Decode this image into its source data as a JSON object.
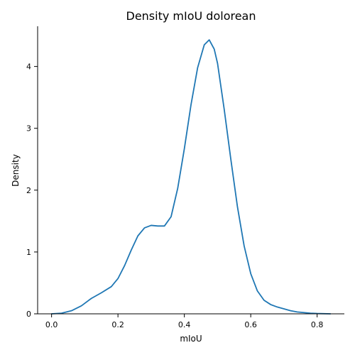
{
  "chart_data": {
    "type": "line",
    "title": "Density mIoU dolorean",
    "xlabel": "mIoU",
    "ylabel": "Density",
    "xlim": [
      -0.042,
      0.882
    ],
    "ylim": [
      0,
      4.65
    ],
    "xticks": [
      0.0,
      0.2,
      0.4,
      0.6,
      0.8
    ],
    "xtick_labels": [
      "0.0",
      "0.2",
      "0.4",
      "0.6",
      "0.8"
    ],
    "yticks": [
      0,
      1,
      2,
      3,
      4
    ],
    "ytick_labels": [
      "0",
      "1",
      "2",
      "3",
      "4"
    ],
    "grid": false,
    "color": "#1f77b4",
    "series": [
      {
        "x": [
          0.0,
          0.03,
          0.06,
          0.09,
          0.12,
          0.15,
          0.18,
          0.2,
          0.22,
          0.24,
          0.26,
          0.28,
          0.3,
          0.32,
          0.34,
          0.36,
          0.38,
          0.4,
          0.42,
          0.44,
          0.46,
          0.475,
          0.49,
          0.5,
          0.52,
          0.54,
          0.56,
          0.58,
          0.6,
          0.62,
          0.64,
          0.66,
          0.68,
          0.7,
          0.72,
          0.74,
          0.76,
          0.78,
          0.8,
          0.84
        ],
        "y": [
          0.0,
          0.01,
          0.05,
          0.13,
          0.25,
          0.34,
          0.44,
          0.57,
          0.78,
          1.03,
          1.26,
          1.39,
          1.43,
          1.42,
          1.42,
          1.57,
          2.03,
          2.67,
          3.38,
          3.98,
          4.35,
          4.43,
          4.28,
          4.05,
          3.31,
          2.5,
          1.73,
          1.1,
          0.65,
          0.37,
          0.22,
          0.15,
          0.11,
          0.08,
          0.05,
          0.03,
          0.02,
          0.01,
          0.005,
          0.0
        ]
      }
    ]
  }
}
